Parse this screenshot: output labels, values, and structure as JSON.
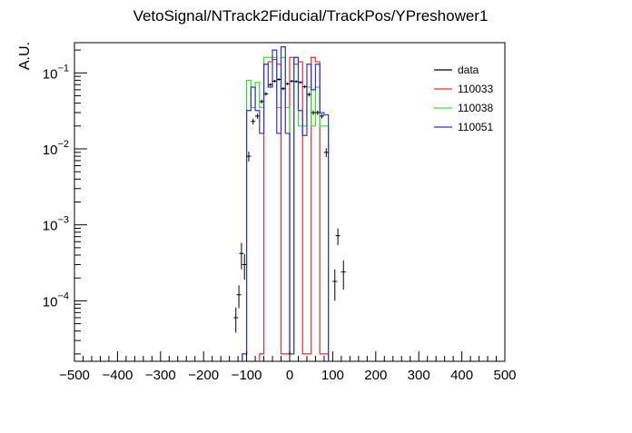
{
  "chart_data": {
    "type": "line",
    "title": "VetoSignal/NTrack2Fiducial/TrackPos/YPreshower1",
    "ylabel": "A.U.",
    "xlabel": "",
    "xlim": [
      -500,
      500
    ],
    "ylim_log": [
      1.6e-05,
      0.25
    ],
    "y_scale": "log",
    "x_ticks": [
      -500,
      -400,
      -300,
      -200,
      -100,
      0,
      100,
      200,
      300,
      400,
      500
    ],
    "y_ticks": [
      {
        "value": 0.1,
        "base": "10",
        "exp": "−1"
      },
      {
        "value": 0.01,
        "base": "10",
        "exp": "−2"
      },
      {
        "value": 0.001,
        "base": "10",
        "exp": "−3"
      },
      {
        "value": 0.0001,
        "base": "10",
        "exp": "−4"
      }
    ],
    "legend_position": "top-right",
    "grid": false,
    "series": [
      {
        "name": "110033",
        "color": "#e03030",
        "style": "step",
        "bin_edges": [
          -70,
          -60,
          -50,
          -40,
          -30,
          -20,
          -10,
          0,
          10,
          20,
          30,
          40,
          50,
          60,
          70,
          80,
          90
        ],
        "values": [
          2e-05,
          0.13,
          0.14,
          0.15,
          0.13,
          2e-05,
          2e-05,
          0.16,
          0.13,
          0.14,
          2e-05,
          2e-05,
          0.16,
          0.14,
          2e-05,
          2e-05
        ]
      },
      {
        "name": "110038",
        "color": "#30e030",
        "style": "step",
        "bin_edges": [
          -110,
          -100,
          -90,
          -80,
          -70,
          -60,
          -50,
          -40,
          -30,
          -20,
          -10,
          0,
          10,
          20,
          30,
          40,
          50,
          60,
          70,
          80,
          90
        ],
        "values": [
          2e-05,
          0.08,
          0.035,
          0.075,
          0.035,
          0.16,
          0.16,
          0.16,
          0.035,
          0.16,
          0.035,
          2e-05,
          0.16,
          0.02,
          0.02,
          0.065,
          0.02,
          0.065,
          0.02,
          0.02
        ]
      },
      {
        "name": "110051",
        "color": "#3030d0",
        "style": "step",
        "bin_edges": [
          -110,
          -100,
          -90,
          -80,
          -70,
          -60,
          -50,
          -40,
          -30,
          -20,
          -10,
          0,
          10,
          20,
          30,
          40,
          50,
          60,
          70,
          80,
          90
        ],
        "values": [
          2e-05,
          0.032,
          0.065,
          0.032,
          0.016,
          0.13,
          0.065,
          0.2,
          0.016,
          0.22,
          0.016,
          2e-05,
          0.16,
          0.032,
          0.015,
          0.13,
          0.06,
          0.13,
          0.03,
          0.028
        ]
      },
      {
        "name": "data",
        "color": "#000000",
        "style": "errorbar",
        "points": [
          {
            "x": -125,
            "y": 6e-05,
            "err": 2.2e-05
          },
          {
            "x": -118,
            "y": 0.00012,
            "err": 4e-05
          },
          {
            "x": -112,
            "y": 0.00042,
            "err": 0.00016
          },
          {
            "x": -105,
            "y": 0.0003,
            "err": 0.00011
          },
          {
            "x": -95,
            "y": 0.008,
            "err": 0.0012
          },
          {
            "x": -85,
            "y": 0.023,
            "err": 0.002
          },
          {
            "x": -75,
            "y": 0.027,
            "err": 0.002
          },
          {
            "x": -65,
            "y": 0.042,
            "err": 0.0025
          },
          {
            "x": -55,
            "y": 0.053,
            "err": 0.003
          },
          {
            "x": -45,
            "y": 0.07,
            "err": 0.003
          },
          {
            "x": -35,
            "y": 0.078,
            "err": 0.003
          },
          {
            "x": -25,
            "y": 0.082,
            "err": 0.003
          },
          {
            "x": -15,
            "y": 0.062,
            "err": 0.003
          },
          {
            "x": -5,
            "y": 0.072,
            "err": 0.003
          },
          {
            "x": 5,
            "y": 0.078,
            "err": 0.003
          },
          {
            "x": 15,
            "y": 0.077,
            "err": 0.003
          },
          {
            "x": 25,
            "y": 0.075,
            "err": 0.003
          },
          {
            "x": 35,
            "y": 0.066,
            "err": 0.003
          },
          {
            "x": 45,
            "y": 0.052,
            "err": 0.003
          },
          {
            "x": 55,
            "y": 0.03,
            "err": 0.002
          },
          {
            "x": 65,
            "y": 0.03,
            "err": 0.002
          },
          {
            "x": 75,
            "y": 0.027,
            "err": 0.002
          },
          {
            "x": 85,
            "y": 0.009,
            "err": 0.0012
          },
          {
            "x": 105,
            "y": 0.00018,
            "err": 8e-05
          },
          {
            "x": 112,
            "y": 0.00072,
            "err": 0.00018
          },
          {
            "x": 125,
            "y": 0.00024,
            "err": 0.0001
          }
        ]
      }
    ],
    "legend": [
      {
        "name": "data",
        "color": "#000000"
      },
      {
        "name": "110033",
        "color": "#e03030"
      },
      {
        "name": "110038",
        "color": "#30e030"
      },
      {
        "name": "110051",
        "color": "#3030d0"
      }
    ]
  }
}
